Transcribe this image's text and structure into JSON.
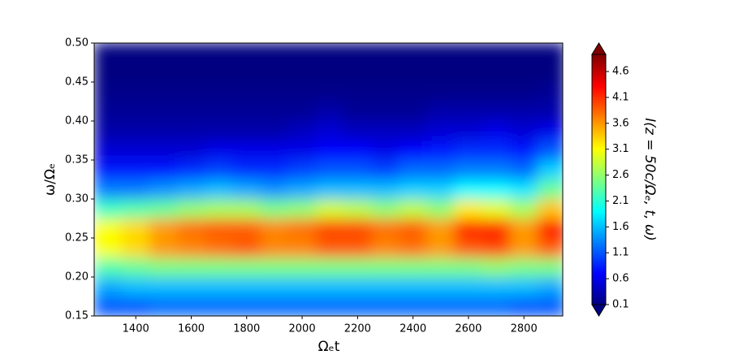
{
  "chart_data": {
    "type": "contour",
    "x_label": "Ωₑt",
    "y_label": "ω/Ωₑ",
    "colorbar_label": "I(z = 50c/Ωₑ, t, ω)",
    "colormap": "jet",
    "xlim": [
      1250,
      2940
    ],
    "ylim": [
      0.15,
      0.5
    ],
    "xticks": [
      1400,
      1600,
      1800,
      2000,
      2200,
      2400,
      2600,
      2800
    ],
    "yticks": [
      0.15,
      {
        "value": 0.2,
        "label": "0.20"
      },
      0.25,
      {
        "value": 0.3,
        "label": "0.30"
      },
      0.35,
      {
        "value": 0.4,
        "label": "0.40"
      },
      0.45,
      {
        "value": 0.5,
        "label": "0.50"
      }
    ],
    "clim": [
      0.1,
      4.93
    ],
    "cticks": [
      0.1,
      0.6,
      1.1,
      1.6,
      2.1,
      2.6,
      3.1,
      3.6,
      4.1,
      4.6
    ],
    "x": [
      1300,
      1400,
      1500,
      1600,
      1700,
      1800,
      1900,
      2000,
      2100,
      2200,
      2300,
      2400,
      2500,
      2600,
      2700,
      2800,
      2900
    ],
    "y": [
      0.1625,
      0.1875,
      0.2125,
      0.2375,
      0.2625,
      0.2875,
      0.3125,
      0.3375,
      0.3625,
      0.3875,
      0.4125,
      0.4375,
      0.4625,
      0.4875
    ],
    "z": [
      [
        1.1,
        1.1,
        1.2,
        1.2,
        1.2,
        1.2,
        1.2,
        1.2,
        1.2,
        1.2,
        1.2,
        1.2,
        1.2,
        1.2,
        1.2,
        1.1,
        1.1
      ],
      [
        1.5,
        1.6,
        1.6,
        1.6,
        1.6,
        1.6,
        1.6,
        1.6,
        1.6,
        1.6,
        1.6,
        1.6,
        1.6,
        1.6,
        1.6,
        1.6,
        1.5
      ],
      [
        2.3,
        2.4,
        2.5,
        2.5,
        2.5,
        2.5,
        2.5,
        2.5,
        2.5,
        2.5,
        2.5,
        2.5,
        2.5,
        2.5,
        2.6,
        2.5,
        2.5
      ],
      [
        3.1,
        3.3,
        3.6,
        3.7,
        3.8,
        3.9,
        3.7,
        3.7,
        3.9,
        3.9,
        3.7,
        3.8,
        3.6,
        3.9,
        4.0,
        3.6,
        3.9
      ],
      [
        3.1,
        3.3,
        3.6,
        3.8,
        3.9,
        3.9,
        3.7,
        3.8,
        4.0,
        4.0,
        3.8,
        3.9,
        3.6,
        4.2,
        4.2,
        3.6,
        4.3
      ],
      [
        2.2,
        2.3,
        2.4,
        2.6,
        2.7,
        2.7,
        2.5,
        2.6,
        2.9,
        2.8,
        2.6,
        2.8,
        2.6,
        3.2,
        3.0,
        2.7,
        3.4
      ],
      [
        1.3,
        1.3,
        1.4,
        1.5,
        1.6,
        1.5,
        1.4,
        1.5,
        1.6,
        1.6,
        1.6,
        1.7,
        1.7,
        1.9,
        1.9,
        1.8,
        2.4
      ],
      [
        0.8,
        0.8,
        0.8,
        0.9,
        1.0,
        0.9,
        0.9,
        1.0,
        1.1,
        1.1,
        1.0,
        1.2,
        1.2,
        1.3,
        1.3,
        1.2,
        1.7
      ],
      [
        0.5,
        0.5,
        0.5,
        0.5,
        0.6,
        0.6,
        0.6,
        0.6,
        0.7,
        0.7,
        0.6,
        0.7,
        0.8,
        0.9,
        0.9,
        0.8,
        1.1
      ],
      [
        0.3,
        0.3,
        0.3,
        0.3,
        0.3,
        0.3,
        0.3,
        0.4,
        0.5,
        0.4,
        0.4,
        0.4,
        0.5,
        0.5,
        0.6,
        0.5,
        0.6
      ],
      [
        0.2,
        0.2,
        0.2,
        0.2,
        0.2,
        0.2,
        0.2,
        0.2,
        0.3,
        0.2,
        0.2,
        0.2,
        0.3,
        0.3,
        0.3,
        0.3,
        0.3
      ],
      [
        0.15,
        0.15,
        0.15,
        0.15,
        0.15,
        0.15,
        0.15,
        0.15,
        0.15,
        0.15,
        0.15,
        0.15,
        0.15,
        0.15,
        0.15,
        0.15,
        0.2
      ],
      [
        0.1,
        0.1,
        0.1,
        0.1,
        0.1,
        0.1,
        0.1,
        0.1,
        0.1,
        0.1,
        0.1,
        0.1,
        0.1,
        0.1,
        0.1,
        0.1,
        0.1
      ],
      [
        0.1,
        0.1,
        0.1,
        0.1,
        0.1,
        0.1,
        0.1,
        0.1,
        0.1,
        0.1,
        0.1,
        0.1,
        0.1,
        0.1,
        0.1,
        0.1,
        0.1
      ]
    ]
  }
}
